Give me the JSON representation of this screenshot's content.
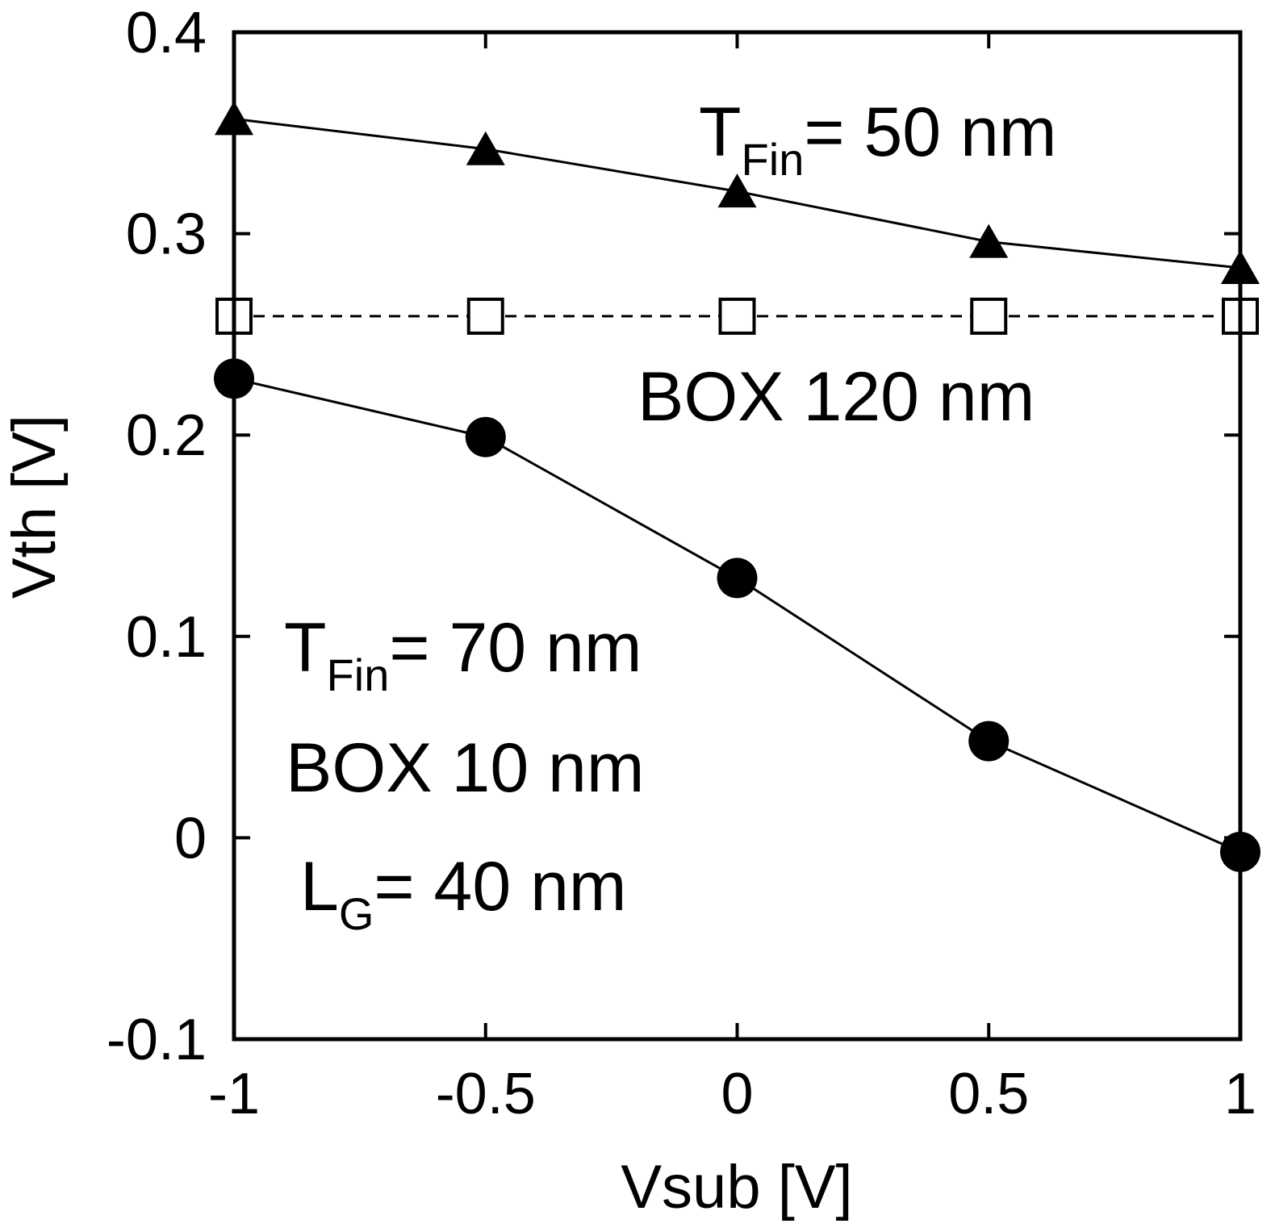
{
  "chart_data": {
    "type": "line",
    "xlabel": "Vsub [V]",
    "ylabel": "Vth [V]",
    "xlim": [
      -1,
      1
    ],
    "ylim": [
      -0.1,
      0.4
    ],
    "x_ticks": [
      -1,
      -0.5,
      0,
      0.5,
      1
    ],
    "x_tick_labels": [
      "-1",
      "-0.5",
      "0",
      "0.5",
      "1"
    ],
    "y_ticks": [
      -0.1,
      0,
      0.1,
      0.2,
      0.3,
      0.4
    ],
    "y_tick_labels": [
      "-0.1",
      "0",
      "0.1",
      "0.2",
      "0.3",
      "0.4"
    ],
    "grid": false,
    "legend": "none",
    "x": [
      -1,
      -0.5,
      0,
      0.5,
      1
    ],
    "series": [
      {
        "marker": "triangle-filled",
        "line": "solid",
        "color": "#000000",
        "values": [
          0.357,
          0.342,
          0.321,
          0.296,
          0.283
        ]
      },
      {
        "marker": "square-open",
        "line": "dashed",
        "color": "#000000",
        "values": [
          0.259,
          0.259,
          0.259,
          0.259,
          0.259
        ]
      },
      {
        "marker": "circle-filled",
        "line": "solid",
        "color": "#000000",
        "values": [
          0.228,
          0.199,
          0.129,
          0.048,
          -0.007
        ]
      }
    ],
    "annotations": {
      "tfin50": {
        "main": "T",
        "sub": "Fin",
        "rest": "= 50 nm"
      },
      "box120": {
        "text": "BOX 120 nm"
      },
      "tfin70": {
        "main": "T",
        "sub": "Fin",
        "rest": "= 70 nm"
      },
      "box10": {
        "text": "BOX 10 nm"
      },
      "lg": {
        "main": "L",
        "sub": "G",
        "rest": "= 40 nm"
      }
    }
  }
}
